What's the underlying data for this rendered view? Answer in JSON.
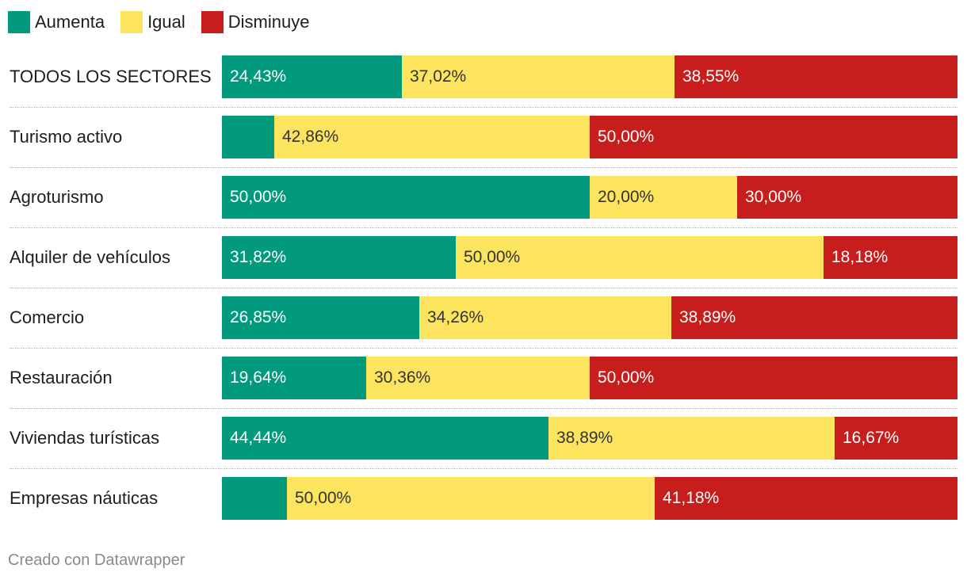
{
  "legend": {
    "items": [
      {
        "label": "Aumenta",
        "color": "#019a7c"
      },
      {
        "label": "Igual",
        "color": "#fce45e"
      },
      {
        "label": "Disminuye",
        "color": "#c71e1d"
      }
    ]
  },
  "chart_data": {
    "type": "bar",
    "orientation": "horizontal",
    "stacked": true,
    "normalized": true,
    "title": "",
    "categories": [
      "TODOS LOS SECTORES",
      "Turismo activo",
      "Agroturismo",
      "Alquiler de vehículos",
      "Comercio",
      "Restauración",
      "Viviendas turísticas",
      "Empresas náuticas"
    ],
    "series": [
      {
        "name": "Aumenta",
        "color": "#019a7c",
        "values": [
          24.43,
          7.14,
          50.0,
          31.82,
          26.85,
          19.64,
          44.44,
          8.82
        ]
      },
      {
        "name": "Igual",
        "color": "#fce45e",
        "values": [
          37.02,
          42.86,
          20.0,
          50.0,
          34.26,
          30.36,
          38.89,
          50.0
        ]
      },
      {
        "name": "Disminuye",
        "color": "#c71e1d",
        "values": [
          38.55,
          50.0,
          30.0,
          18.18,
          38.89,
          50.0,
          16.67,
          41.18
        ]
      }
    ],
    "labels": [
      [
        "24,43%",
        "37,02%",
        "38,55%"
      ],
      [
        "",
        "42,86%",
        "50,00%"
      ],
      [
        "50,00%",
        "20,00%",
        "30,00%"
      ],
      [
        "31,82%",
        "50,00%",
        "18,18%"
      ],
      [
        "26,85%",
        "34,26%",
        "38,89%"
      ],
      [
        "19,64%",
        "30,36%",
        "50,00%"
      ],
      [
        "44,44%",
        "38,89%",
        "16,67%"
      ],
      [
        "",
        "50,00%",
        "41,18%"
      ]
    ],
    "xlim": [
      0,
      100
    ],
    "legend_position": "top-left"
  },
  "footer": {
    "credit": "Creado con Datawrapper"
  }
}
